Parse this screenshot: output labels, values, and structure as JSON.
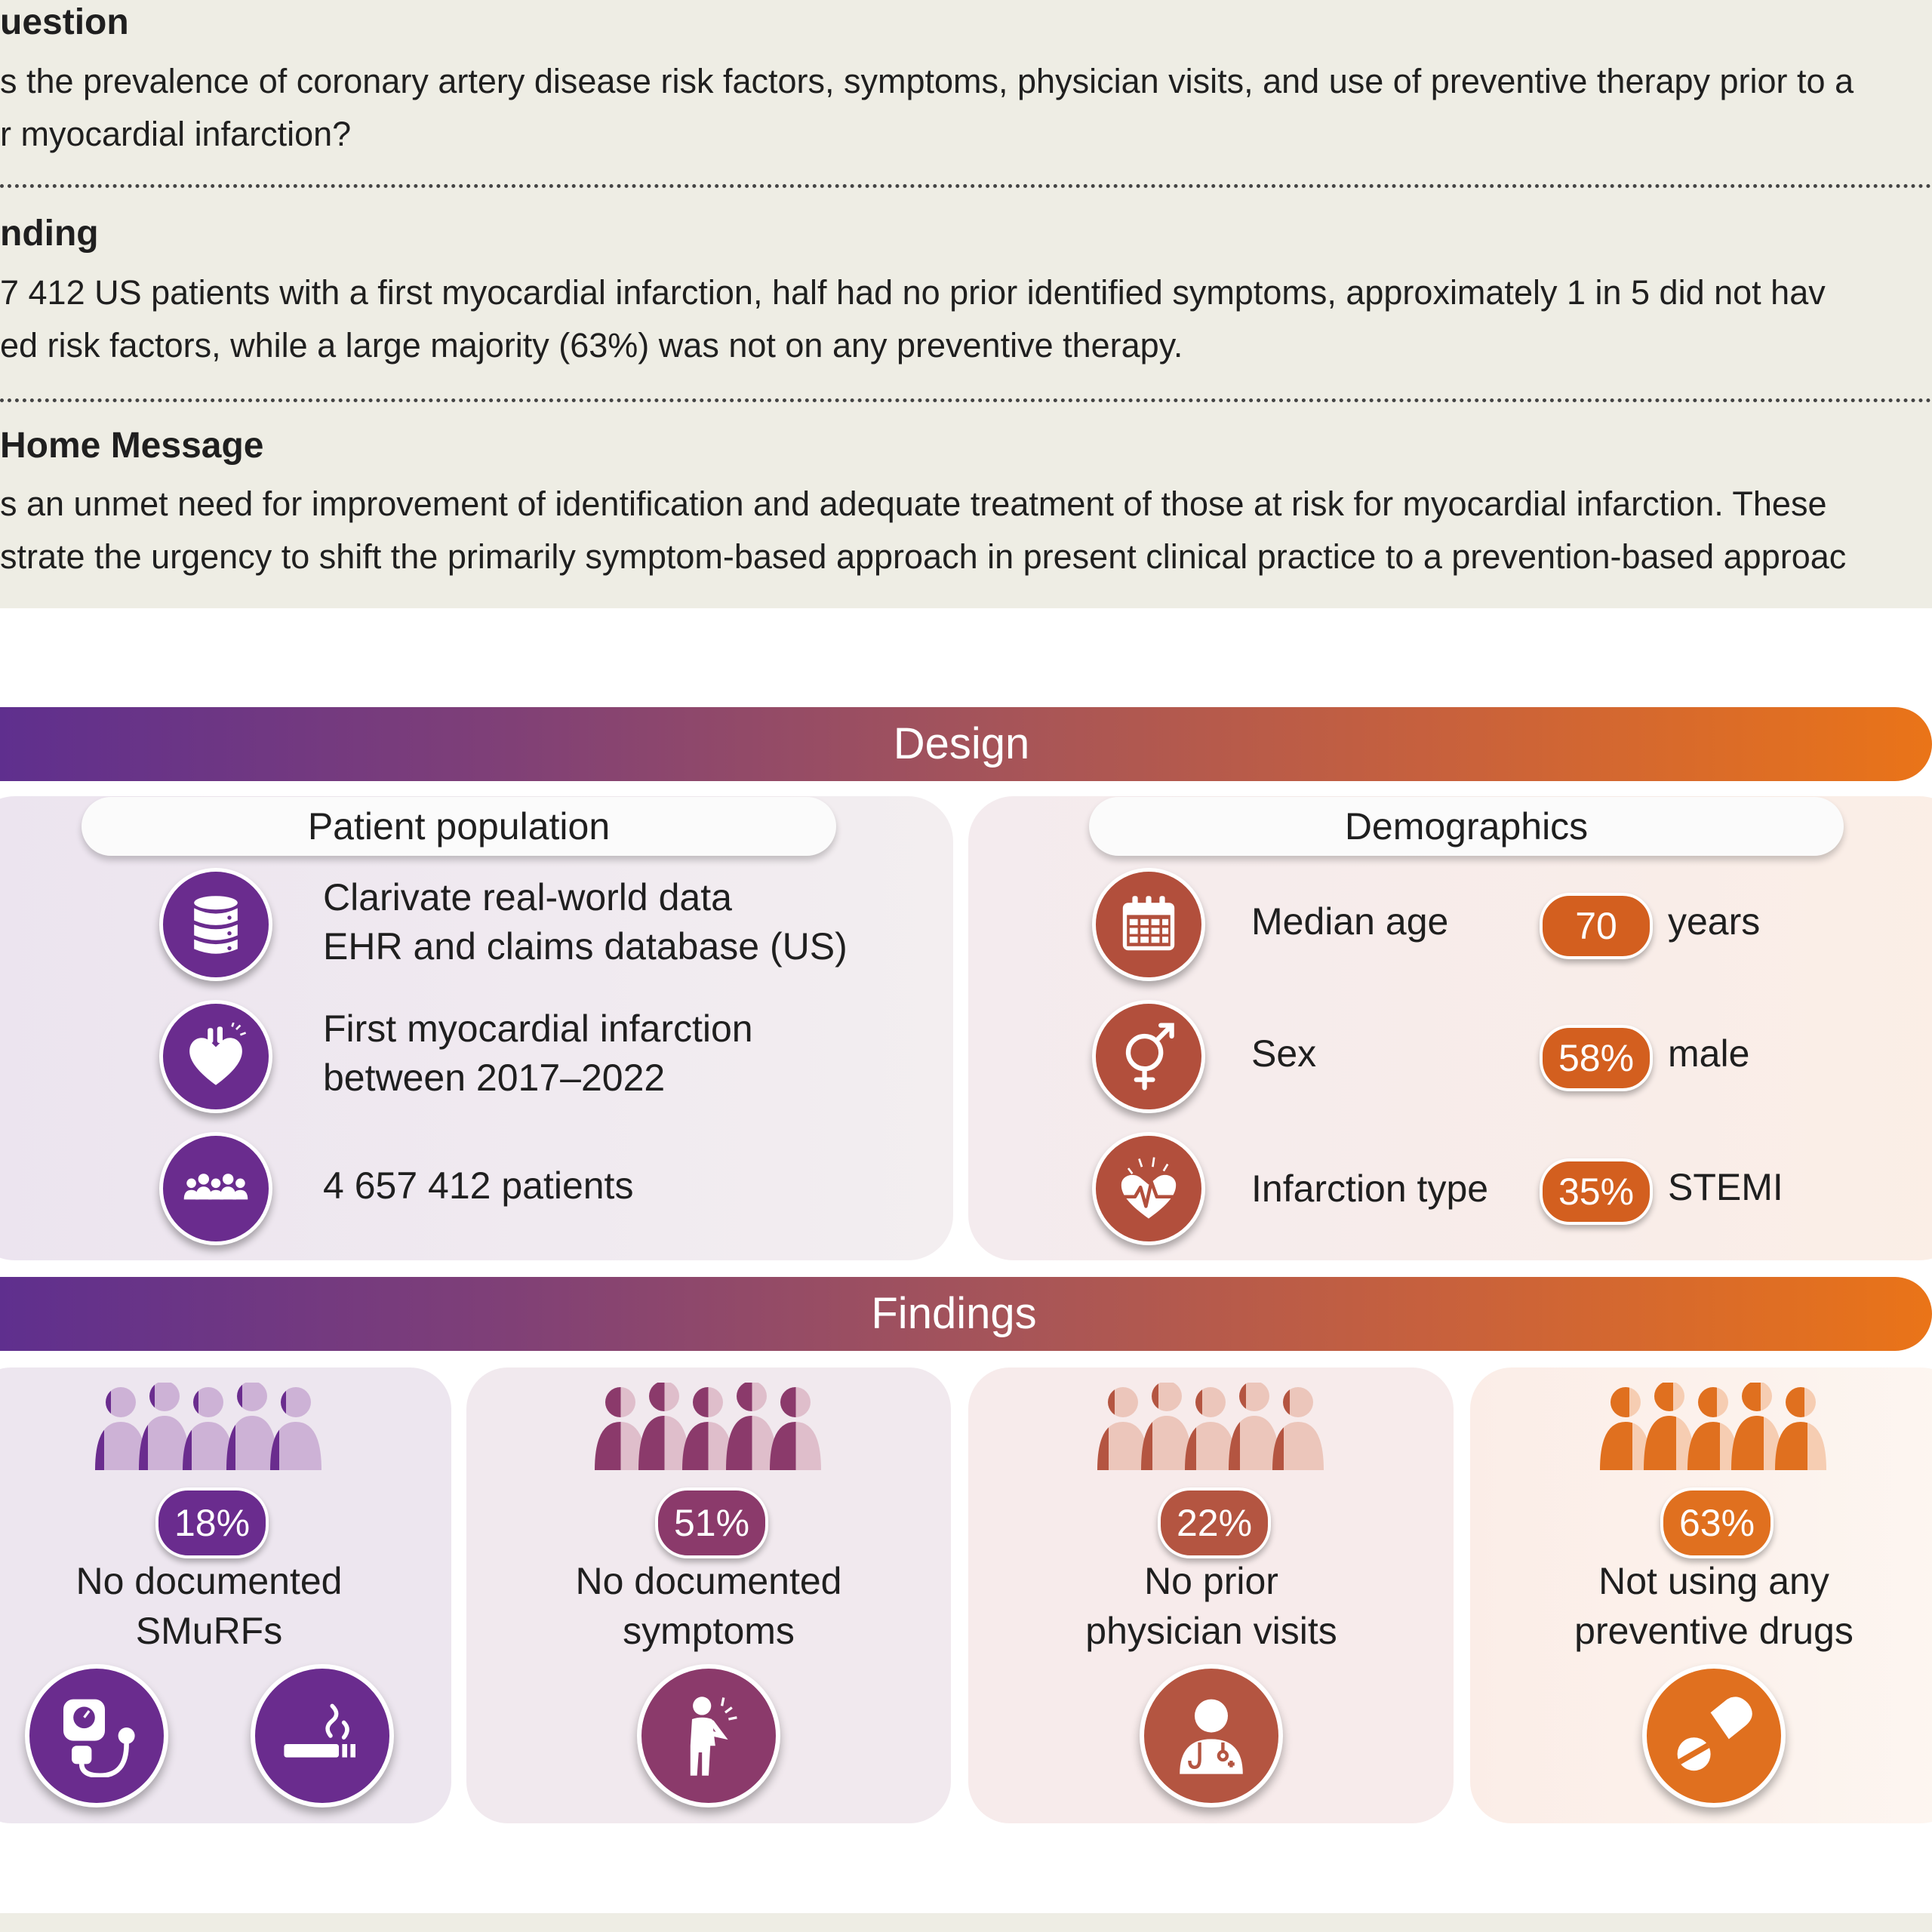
{
  "top": {
    "question_heading": "uestion",
    "question_lines": [
      "s the prevalence of coronary artery disease risk factors, symptoms, physician visits, and use of preventive therapy prior to a",
      "r myocardial infarction?"
    ],
    "finding_heading": "nding",
    "finding_lines": [
      "7 412 US patients with a first myocardial infarction, half had no prior identified symptoms, approximately 1 in 5 did not hav",
      "ed risk factors, while a large majority (63%) was not on any preventive therapy."
    ],
    "message_heading": "Home Message",
    "message_lines": [
      "s an unmet need for improvement of identification and adequate treatment of those at risk for myocardial infarction. These",
      "strate the urgency to shift the primarily symptom-based approach in present clinical practice to a prevention-based approac"
    ]
  },
  "design": {
    "title": "Design",
    "population": {
      "heading": "Patient population",
      "items": [
        {
          "icon": "database-icon",
          "lines": [
            "Clarivate real-world data",
            "EHR and claims database (US)"
          ]
        },
        {
          "icon": "heart-icon",
          "lines": [
            "First myocardial infarction",
            "between 2017–2022"
          ]
        },
        {
          "icon": "people-group-icon",
          "lines": [
            "4 657 412 patients"
          ]
        }
      ]
    },
    "demographics": {
      "heading": "Demographics",
      "items": [
        {
          "icon": "calendar-icon",
          "label": "Median age",
          "value": "70",
          "unit": "years"
        },
        {
          "icon": "sex-symbol-icon",
          "label": "Sex",
          "value": "58%",
          "unit": "male"
        },
        {
          "icon": "heartbeat-icon",
          "label": "Infarction type",
          "value": "35%",
          "unit": "STEMI"
        }
      ]
    }
  },
  "findings": {
    "title": "Findings",
    "items": [
      {
        "value": "18%",
        "fraction": 0.18,
        "lines": [
          "No documented",
          "SMuRFs"
        ],
        "icons": [
          "blood-pressure-monitor-icon",
          "smoking-icon"
        ],
        "color": "#6a2c8e",
        "light": "#cdb2d6"
      },
      {
        "value": "51%",
        "fraction": 0.51,
        "lines": [
          "No documented",
          "symptoms"
        ],
        "icons": [
          "chest-pain-person-icon"
        ],
        "color": "#8b3a6b",
        "light": "#dfbecb"
      },
      {
        "value": "22%",
        "fraction": 0.22,
        "lines": [
          "No prior",
          "physician visits"
        ],
        "icons": [
          "doctor-icon"
        ],
        "color": "#b45541",
        "light": "#ecc6bb"
      },
      {
        "value": "63%",
        "fraction": 0.63,
        "lines": [
          "Not using any",
          "preventive drugs"
        ],
        "icons": [
          "pill-icon"
        ],
        "color": "#e0701f",
        "light": "#f6cdb2"
      }
    ]
  }
}
